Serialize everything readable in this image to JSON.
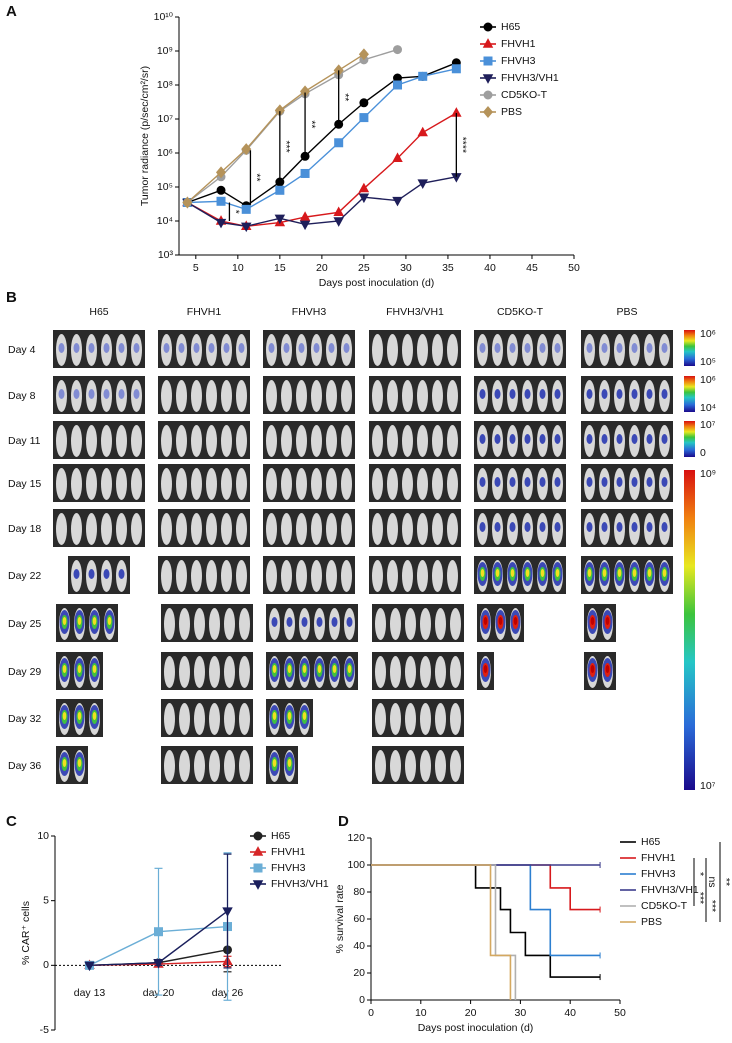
{
  "chart_data": [
    {
      "panel": "A",
      "type": "line",
      "log_y": true,
      "y_label": "Tumor radiance (p/sec/cm²/sr)",
      "x_label": "Days post inoculation (d)",
      "x": [
        4,
        8,
        11,
        15,
        18,
        22,
        25,
        29,
        32,
        36
      ],
      "xlim": [
        3,
        50
      ],
      "xticks": [
        5,
        10,
        15,
        20,
        25,
        30,
        35,
        40,
        45,
        50
      ],
      "ylim": [
        1000,
        10000000000
      ],
      "yticks": [
        {
          "value": 1000,
          "label": "10³"
        },
        {
          "value": 10000,
          "label": "10⁴"
        },
        {
          "value": 100000,
          "label": "10⁵"
        },
        {
          "value": 1000000,
          "label": "10⁶"
        },
        {
          "value": 10000000,
          "label": "10⁷"
        },
        {
          "value": 100000000,
          "label": "10⁸"
        },
        {
          "value": 1000000000,
          "label": "10⁹"
        },
        {
          "value": 10000000000,
          "label": "10¹⁰"
        }
      ],
      "series": [
        {
          "name": "H65",
          "color": "#000000",
          "marker": "circle",
          "values": [
            35000,
            80000,
            28000,
            140000,
            800000,
            7000000,
            30000000,
            160000000,
            180000000,
            450000000
          ]
        },
        {
          "name": "FHVH1",
          "color": "#d7191c",
          "marker": "triangle",
          "values": [
            35000,
            10000,
            7000,
            9000,
            13000,
            18000,
            90000,
            700000,
            4000000,
            15000000
          ]
        },
        {
          "name": "FHVH3",
          "color": "#4a90d9",
          "marker": "square",
          "values": [
            35000,
            38000,
            22000,
            80000,
            250000,
            2000000,
            11000000,
            100000000,
            180000000,
            300000000
          ]
        },
        {
          "name": "FHVH3/VH1",
          "color": "#1f1f5a",
          "marker": "triangle-down",
          "values": [
            35000,
            9000,
            7000,
            12000,
            8000,
            10000,
            50000,
            40000,
            130000,
            200000
          ]
        },
        {
          "name": "CD5KO-T",
          "color": "#9e9e9e",
          "marker": "circle",
          "values": [
            35000,
            200000,
            1200000,
            17000000,
            55000000,
            200000000,
            550000000,
            1100000000,
            null,
            null
          ]
        },
        {
          "name": "PBS",
          "color": "#b5935a",
          "marker": "diamond",
          "values": [
            35000,
            270000,
            1300000,
            18000000,
            65000000,
            270000000,
            800000000,
            null,
            null,
            null
          ]
        }
      ],
      "annotations": [
        {
          "text": "*",
          "x": 9,
          "y": [
            10000,
            35000
          ]
        },
        {
          "text": "**",
          "x": 11.5,
          "y": [
            30000,
            1200000
          ]
        },
        {
          "text": "***",
          "x": 15,
          "y": [
            140000,
            17000000
          ]
        },
        {
          "text": "**",
          "x": 18,
          "y": [
            800000,
            60000000
          ]
        },
        {
          "text": "**",
          "x": 22,
          "y": [
            7000000,
            270000000
          ]
        },
        {
          "text": "****",
          "x": 36,
          "y": [
            200000,
            15000000
          ]
        }
      ]
    },
    {
      "panel": "C",
      "type": "line",
      "y_label": "% CAR⁺ cells",
      "categories": [
        "day 13",
        "day 20",
        "day 26"
      ],
      "ylim": [
        -5,
        10
      ],
      "yticks": [
        -5,
        0,
        5,
        10
      ],
      "series": [
        {
          "name": "H65",
          "color": "#222222",
          "marker": "circle",
          "values": [
            0,
            0.2,
            1.2
          ],
          "errors": [
            0,
            0.2,
            1.7
          ]
        },
        {
          "name": "FHVH1",
          "color": "#d62728",
          "marker": "triangle",
          "values": [
            0,
            0.1,
            0.3
          ],
          "errors": [
            0,
            0.1,
            0.4
          ]
        },
        {
          "name": "FHVH3",
          "color": "#6baed6",
          "marker": "square",
          "values": [
            0,
            2.6,
            3
          ],
          "errors": [
            0,
            4.9,
            5.7
          ]
        },
        {
          "name": "FHVH3/VH1",
          "color": "#1a1f5c",
          "marker": "triangle-down",
          "values": [
            0,
            0.2,
            4.2
          ],
          "errors": [
            0,
            0.2,
            4.4
          ]
        }
      ]
    },
    {
      "panel": "D",
      "type": "line",
      "step": true,
      "y_label": "% survival rate",
      "x_label": "Days post inoculation (d)",
      "xlim": [
        0,
        50
      ],
      "xticks": [
        0,
        10,
        20,
        30,
        40,
        50
      ],
      "ylim": [
        0,
        120
      ],
      "yticks": [
        0,
        20,
        40,
        60,
        80,
        100,
        120
      ],
      "series": [
        {
          "name": "H65",
          "color": "#000000",
          "x": [
            0,
            21,
            26,
            28,
            31,
            36,
            46
          ],
          "values": [
            100,
            83,
            67,
            50,
            33,
            17,
            17
          ]
        },
        {
          "name": "FHVH1",
          "color": "#d7191c",
          "x": [
            0,
            36,
            40,
            46
          ],
          "values": [
            100,
            83,
            67,
            67
          ]
        },
        {
          "name": "FHVH3",
          "color": "#2c7fd0",
          "x": [
            0,
            32,
            36,
            46
          ],
          "values": [
            100,
            67,
            33,
            33
          ]
        },
        {
          "name": "FHVH3/VH1",
          "color": "#3c3c8c",
          "x": [
            0,
            46
          ],
          "values": [
            100,
            100
          ]
        },
        {
          "name": "CD5KO-T",
          "color": "#b0b0b0",
          "x": [
            0,
            25,
            29
          ],
          "values": [
            100,
            33,
            0
          ]
        },
        {
          "name": "PBS",
          "color": "#d4a860",
          "x": [
            0,
            24,
            28
          ],
          "values": [
            100,
            33,
            0
          ]
        }
      ],
      "annotations": [
        {
          "text": "*"
        },
        {
          "text": "ns"
        },
        {
          "text": "***"
        },
        {
          "text": "***"
        },
        {
          "text": "**"
        }
      ]
    }
  ],
  "imaging": {
    "panel": "B",
    "columns": [
      "H65",
      "FHVH1",
      "FHVH3",
      "FHVH3/VH1",
      "CD5KO-T",
      "PBS"
    ],
    "rows": [
      "Day 4",
      "Day 8",
      "Day 11",
      "Day 15",
      "Day 18",
      "Day 22",
      "Day 25",
      "Day 29",
      "Day 32",
      "Day 36"
    ],
    "scale_labels": [
      [
        "10⁶",
        "10⁵"
      ],
      [
        "10⁶",
        "10⁴"
      ],
      [
        "10⁷",
        "0"
      ],
      [
        "10⁹",
        "10⁷"
      ]
    ]
  }
}
